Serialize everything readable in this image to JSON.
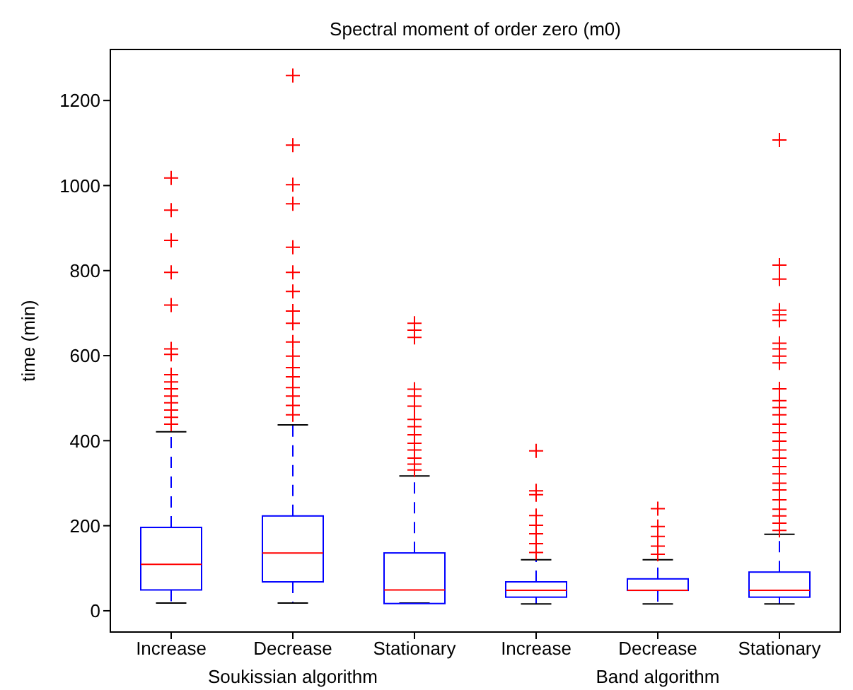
{
  "chart_data": {
    "type": "box",
    "title": "Spectral moment of order zero (m0)",
    "ylabel": "time (min)",
    "categories": [
      "Increase",
      "Decrease",
      "Stationary",
      "Increase",
      "Decrease",
      "Stationary"
    ],
    "annotations": [
      "Soukissian algorithm",
      "Band algorithm"
    ],
    "ylim": [
      -50,
      1320
    ],
    "yticks": [
      0,
      200,
      400,
      600,
      800,
      1000,
      1200
    ],
    "series": [
      {
        "color": "#0000ff",
        "boxes": [
          {
            "low": 18,
            "q1": 49,
            "median": 109,
            "q3": 196,
            "high": 421,
            "outliers": [
              1018,
              942,
              871,
              796,
              719,
              616,
              603,
              555,
              538,
              522,
              505,
              489,
              472,
              455,
              439
            ]
          },
          {
            "low": 18,
            "q1": 68,
            "median": 136,
            "q3": 223,
            "high": 437,
            "outliers": [
              1259,
              1095,
              1002,
              957,
              855,
              796,
              751,
              705,
              676,
              632,
              599,
              572,
              550,
              525,
              505,
              483,
              461
            ]
          },
          {
            "low": 18,
            "q1": 17,
            "median": 49,
            "q3": 136,
            "high": 317,
            "outliers": [
              676,
              660,
              643,
              521,
              505,
              481,
              450,
              433,
              414,
              394,
              378,
              359,
              345,
              331
            ]
          },
          {
            "low": 16,
            "q1": 32,
            "median": 48,
            "q3": 68,
            "high": 120,
            "outliers": [
              376,
              282,
              273,
              224,
              201,
              181,
              158,
              137
            ]
          },
          {
            "low": 16,
            "q1": 48,
            "median": 48,
            "q3": 75,
            "high": 120,
            "outliers": [
              240,
              198,
              175,
              152,
              133
            ]
          },
          {
            "low": 16,
            "q1": 32,
            "median": 48,
            "q3": 91,
            "high": 180,
            "outliers": [
              1107,
              813,
              780,
              707,
              696,
              683,
              629,
              616,
              599,
              583,
              522,
              494,
              478,
              461,
              439,
              419,
              399,
              378,
              359,
              339,
              322,
              300,
              284,
              261,
              239,
              223,
              206,
              189
            ]
          }
        ]
      }
    ]
  }
}
